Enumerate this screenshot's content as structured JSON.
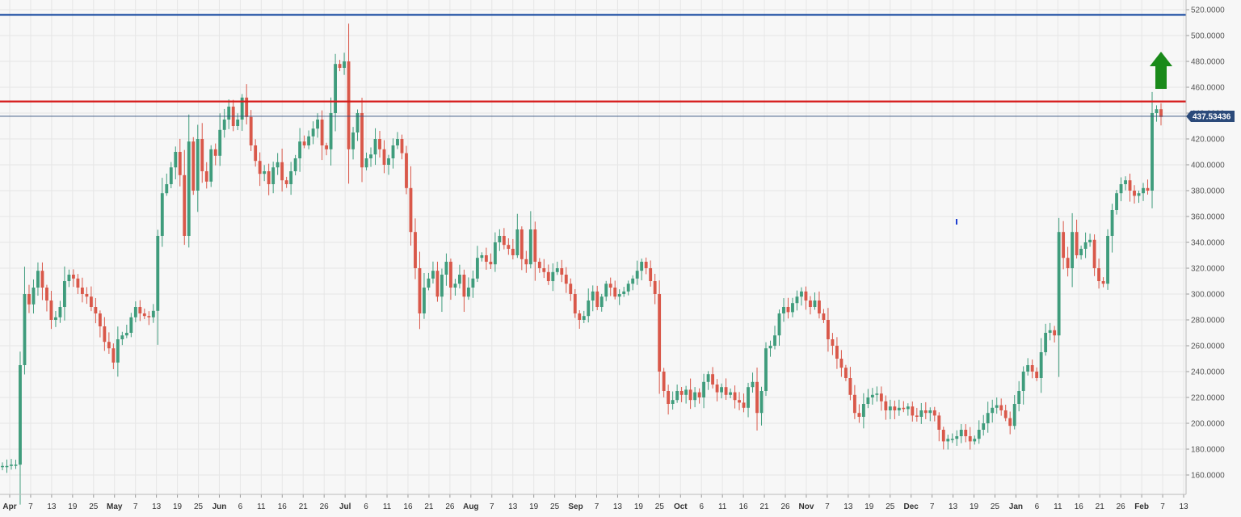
{
  "chart_data": {
    "type": "candlestick",
    "y_axis": {
      "range": [
        150,
        525
      ],
      "ticks": [
        "160.0000",
        "180.0000",
        "200.0000",
        "220.0000",
        "240.0000",
        "260.0000",
        "280.0000",
        "300.0000",
        "320.0000",
        "340.0000",
        "360.0000",
        "380.0000",
        "400.0000",
        "420.0000",
        "440.0000",
        "460.0000",
        "480.0000",
        "500.0000",
        "520.0000"
      ],
      "position": "right"
    },
    "x_axis": {
      "labels": [
        "Apr",
        "7",
        "13",
        "19",
        "25",
        "May",
        "7",
        "13",
        "19",
        "25",
        "Jun",
        "6",
        "11",
        "16",
        "21",
        "26",
        "Jul",
        "6",
        "11",
        "16",
        "21",
        "26",
        "Aug",
        "7",
        "13",
        "19",
        "25",
        "Sep",
        "7",
        "13",
        "19",
        "25",
        "Oct",
        "6",
        "11",
        "16",
        "21",
        "26",
        "Nov",
        "7",
        "13",
        "19",
        "25",
        "Dec",
        "7",
        "13",
        "19",
        "25",
        "Jan",
        "6",
        "11",
        "16",
        "21",
        "26",
        "Feb",
        "7",
        "13"
      ],
      "bold_labels": [
        "Apr",
        "May",
        "Jun",
        "Jul",
        "Aug",
        "Sep",
        "Oct",
        "Nov",
        "Dec",
        "Jan",
        "Feb"
      ]
    },
    "current_price": "437.53436",
    "horizontal_lines": [
      {
        "value": 516,
        "color": "#1f4fa3",
        "name": "resistance-top"
      },
      {
        "value": 449,
        "color": "#d61b1b",
        "name": "resistance-mid"
      }
    ],
    "arrow": {
      "direction": "up",
      "color": "#1a8a1a"
    },
    "colors": {
      "up": "#3f9c7c",
      "down": "#d9584a",
      "grid": "#e6e6e6",
      "price_line": "#2b4a7a"
    },
    "grid": true,
    "close_series": [
      167,
      167,
      168,
      168,
      245,
      300,
      292,
      305,
      318,
      305,
      295,
      280,
      282,
      290,
      310,
      315,
      312,
      305,
      300,
      298,
      290,
      285,
      275,
      263,
      258,
      247,
      265,
      268,
      270,
      282,
      290,
      285,
      283,
      282,
      287,
      345,
      378,
      385,
      398,
      410,
      392,
      345,
      418,
      380,
      420,
      395,
      387,
      412,
      407,
      427,
      435,
      445,
      430,
      435,
      452,
      437,
      415,
      403,
      393,
      395,
      385,
      398,
      402,
      388,
      385,
      395,
      405,
      418,
      415,
      422,
      428,
      435,
      415,
      412,
      440,
      478,
      475,
      480,
      412,
      425,
      440,
      398,
      405,
      408,
      420,
      412,
      400,
      405,
      415,
      420,
      409,
      382,
      348,
      320,
      285,
      305,
      312,
      318,
      298,
      315,
      325,
      305,
      308,
      315,
      298,
      305,
      312,
      328,
      330,
      325,
      323,
      340,
      345,
      338,
      335,
      330,
      350,
      327,
      323,
      350,
      325,
      320,
      317,
      310,
      317,
      320,
      315,
      308,
      300,
      285,
      280,
      283,
      295,
      302,
      290,
      298,
      308,
      305,
      298,
      300,
      302,
      308,
      312,
      318,
      325,
      320,
      310,
      300,
      240,
      225,
      215,
      218,
      225,
      222,
      226,
      218,
      224,
      220,
      232,
      238,
      230,
      224,
      228,
      222,
      224,
      218,
      216,
      212,
      228,
      232,
      208,
      225,
      258,
      260,
      268,
      285,
      290,
      286,
      293,
      298,
      302,
      295,
      290,
      295,
      285,
      280,
      265,
      260,
      250,
      243,
      235,
      222,
      208,
      205,
      215,
      220,
      222,
      223,
      217,
      210,
      213,
      210,
      212,
      211,
      213,
      206,
      205,
      210,
      208,
      210,
      206,
      195,
      186,
      188,
      188,
      190,
      195,
      190,
      186,
      188,
      195,
      200,
      208,
      212,
      214,
      210,
      204,
      198,
      215,
      225,
      240,
      245,
      240,
      235,
      255,
      270,
      272,
      268,
      348,
      328,
      320,
      348,
      330,
      335,
      340,
      342,
      320,
      310,
      308,
      345,
      365,
      378,
      385,
      388,
      380,
      376,
      378,
      382,
      380,
      440,
      443,
      437
    ]
  }
}
